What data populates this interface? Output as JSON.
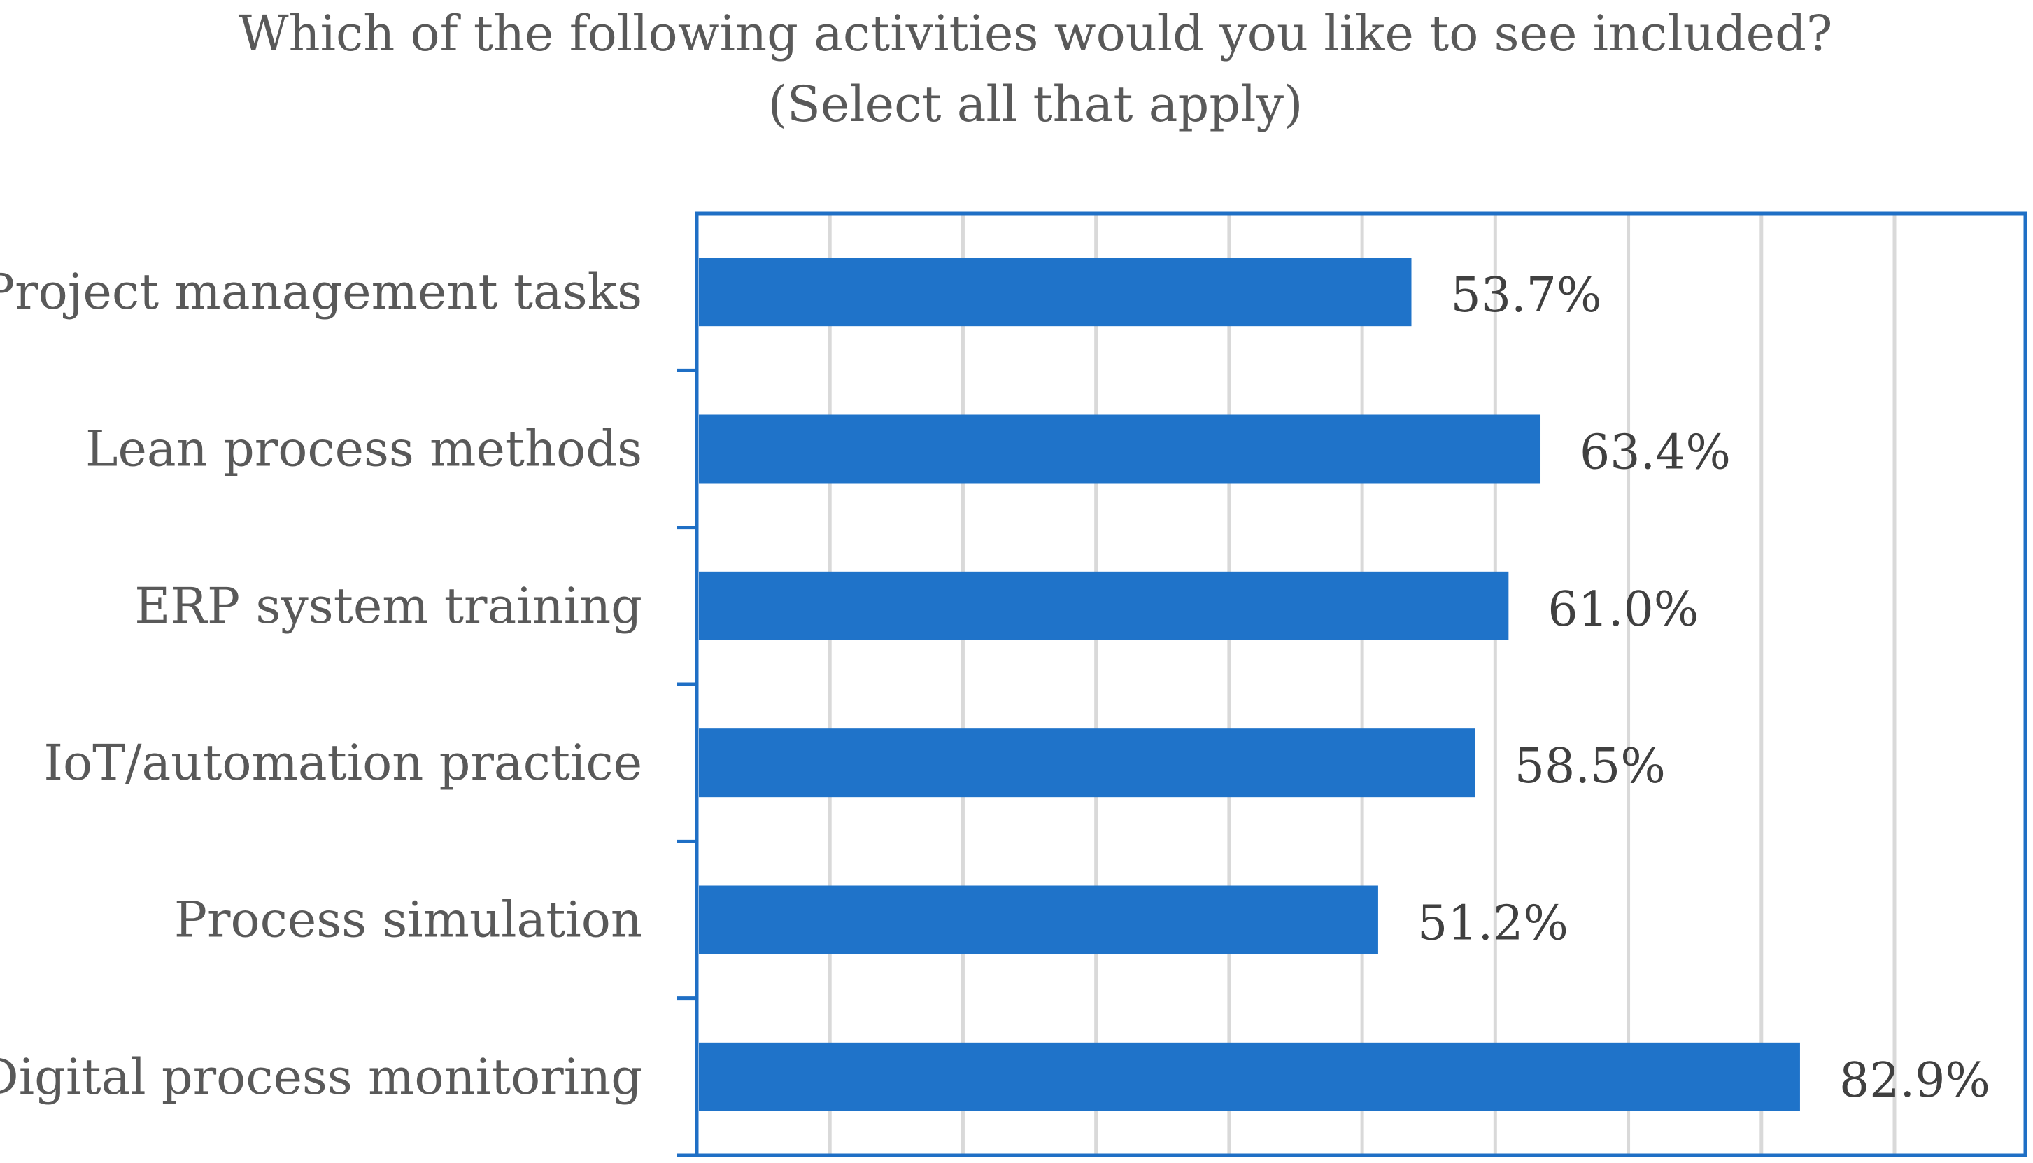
{
  "chart_data": {
    "type": "bar",
    "orientation": "horizontal",
    "title": "Which of the following activities would you like to see included?",
    "subtitle": "(Select all that apply)",
    "categories": [
      "Project management tasks",
      "Lean process methods",
      "ERP system training",
      "IoT/automation practice",
      "Process simulation",
      "Digital process monitoring"
    ],
    "values": [
      53.7,
      63.4,
      61.0,
      58.5,
      51.2,
      82.9
    ],
    "data_labels": [
      "53.7%",
      "63.4%",
      "61.0%",
      "58.5%",
      "51.2%",
      "82.9%"
    ],
    "xlim": [
      0,
      100
    ],
    "x_grid_step": 10,
    "grid": true,
    "legend": "none",
    "xlabel": "",
    "ylabel": "",
    "bar_color": "#1f73c9",
    "axis_color": "#1f6fc5",
    "grid_color": "#d9d9d9",
    "text_color": "#595959",
    "label_color": "#404040"
  }
}
